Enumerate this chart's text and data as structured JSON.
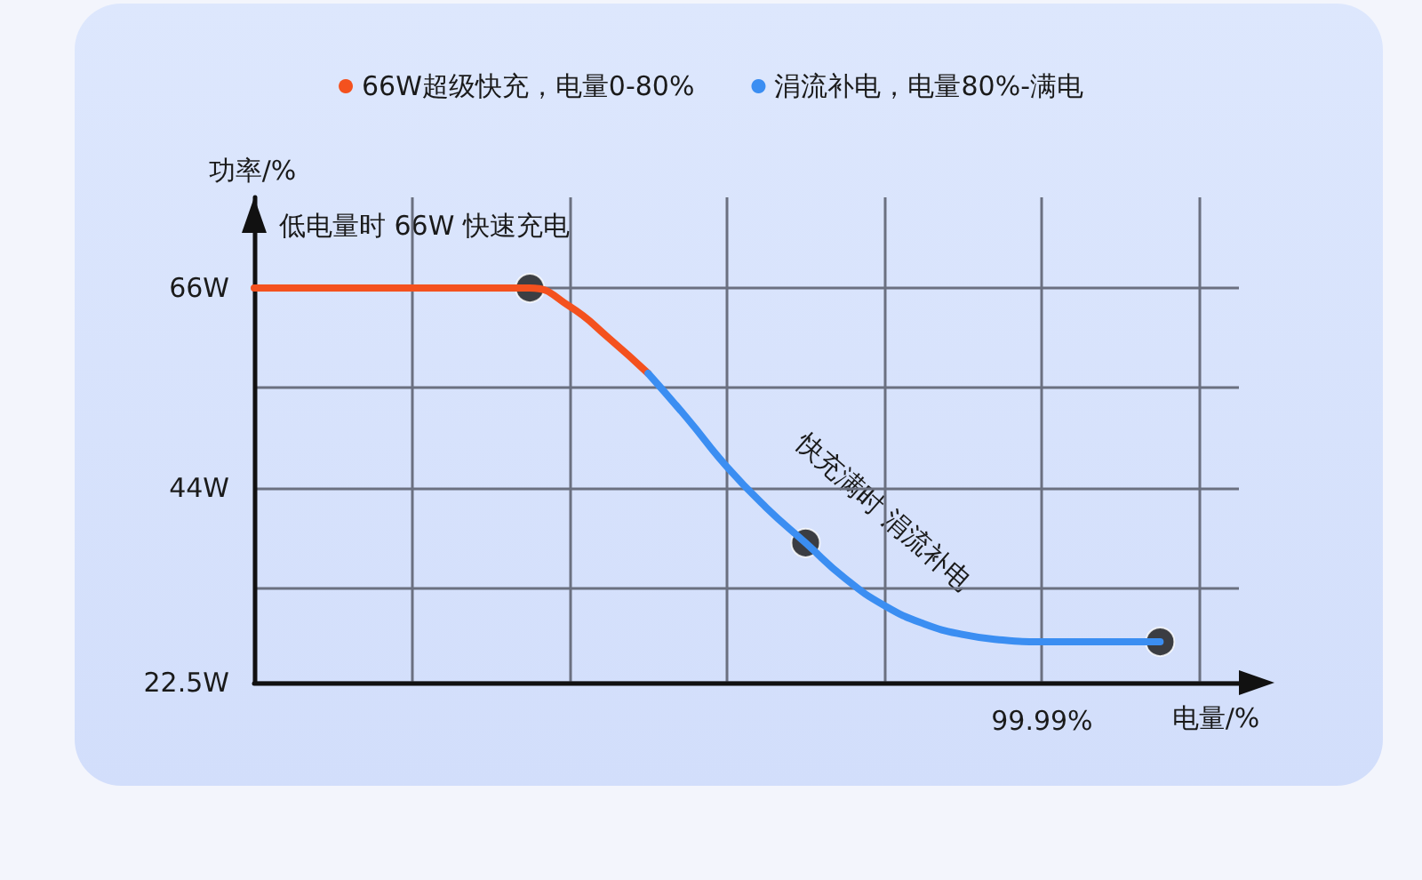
{
  "chart_data": {
    "type": "line",
    "ylabel": "功率/%",
    "xlabel": "电量/%",
    "annotations": [
      "低电量时 66W 快速充电",
      "快充满时 涓流补电"
    ],
    "categories": [
      null,
      null,
      null,
      null,
      null,
      null,
      null,
      null,
      null,
      null,
      null,
      null,
      null,
      null,
      null,
      null,
      null,
      null,
      null,
      null,
      "99.99%",
      null,
      null,
      null,
      null,
      null
    ],
    "series": [
      {
        "name": "66W超级快充，电量0-80%",
        "color": "#f4511e",
        "marker": "none",
        "values": [
          66,
          66,
          66,
          66,
          66,
          66,
          66,
          66,
          64.0,
          60.5,
          56.6,
          null,
          null,
          null,
          null,
          null,
          null,
          null,
          null,
          null,
          null,
          null,
          null,
          null,
          null,
          null
        ]
      },
      {
        "name": "涓流补电，电量80%-满电",
        "color": "#3b8ef2",
        "marker": "none",
        "values": [
          null,
          null,
          null,
          null,
          null,
          null,
          null,
          null,
          null,
          null,
          56.6,
          51.6,
          46.3,
          41.8,
          37.9,
          34.0,
          31.0,
          29.0,
          27.8,
          27.2,
          27.0,
          27.0,
          27.0,
          27.0,
          null,
          null
        ]
      },
      {
        "type": "scatter",
        "color": "#141414",
        "marker": "circle",
        "values": [
          null,
          null,
          null,
          null,
          null,
          null,
          null,
          66,
          null,
          null,
          null,
          null,
          null,
          null,
          37.9,
          null,
          null,
          null,
          null,
          null,
          null,
          null,
          null,
          27.0,
          null,
          null
        ]
      }
    ],
    "ylim": [
      22.5,
      76
    ],
    "yticks": [
      {
        "value": 22.5,
        "label": "22.5W"
      },
      {
        "value": 33,
        "label": null
      },
      {
        "value": 44,
        "label": "44W"
      },
      {
        "value": 55,
        "label": null
      },
      {
        "value": 66,
        "label": "66W"
      }
    ],
    "grid": true,
    "legend": "top"
  }
}
